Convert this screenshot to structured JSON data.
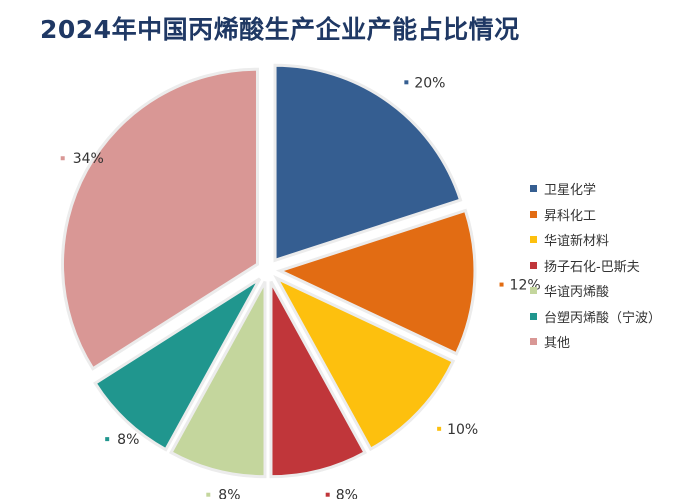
{
  "chart_data": {
    "type": "pie",
    "title": "2024年中国丙烯酸生产企业产能占比情况",
    "slices": [
      {
        "label": "卫星化学",
        "value": 20,
        "display": "20%",
        "color": "#355E91"
      },
      {
        "label": "昇科化工",
        "value": 12,
        "display": "12%",
        "color": "#E26C13"
      },
      {
        "label": "华谊新材料",
        "value": 10,
        "display": "10%",
        "color": "#FDC00E"
      },
      {
        "label": "扬子石化-巴斯夫",
        "value": 8,
        "display": "8%",
        "color": "#C0363A"
      },
      {
        "label": "华谊丙烯酸",
        "value": 8,
        "display": "8%",
        "color": "#C4D69D"
      },
      {
        "label": "台塑丙烯酸（宁波）",
        "value": 8,
        "display": "8%",
        "color": "#20968E"
      },
      {
        "label": "其他",
        "value": 34,
        "display": "34%",
        "color": "#D99795"
      }
    ],
    "legend_position": "right"
  }
}
